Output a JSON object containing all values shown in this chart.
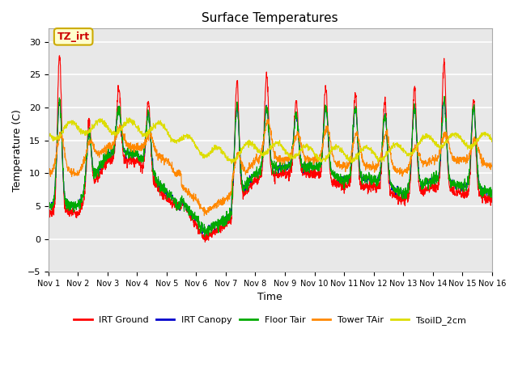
{
  "title": "Surface Temperatures",
  "xlabel": "Time",
  "ylabel": "Temperature (C)",
  "ylim": [
    -5,
    32
  ],
  "yticks": [
    -5,
    0,
    5,
    10,
    15,
    20,
    25,
    30
  ],
  "annotation_text": "TZ_irt",
  "annotation_color": "#cc0000",
  "annotation_bg": "#ffffcc",
  "annotation_border": "#ccaa00",
  "series_colors": {
    "IRT Ground": "#ff0000",
    "IRT Canopy": "#0000cc",
    "Floor Tair": "#00aa00",
    "Tower TAir": "#ff8800",
    "TsoilD_2cm": "#dddd00"
  },
  "bg_color": "#e8e8e8",
  "n_days": 15,
  "points_per_day": 144
}
